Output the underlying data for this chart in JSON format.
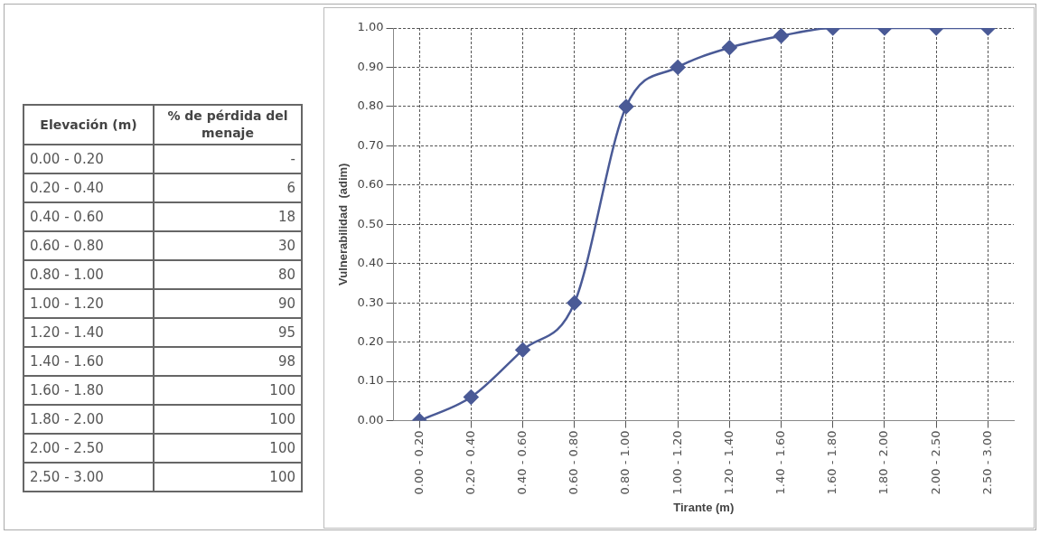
{
  "chart_data": [
    {
      "type": "other",
      "xlabel": "Elevación (m)",
      "ylabel": "% de pérdida del menaje",
      "categories": [
        "0.00  - 0.20",
        "0.20  - 0.40",
        "0.40  - 0.60",
        "0.60  - 0.80",
        "0.80  - 1.00",
        "1.00  - 1.20",
        "1.20  - 1.40",
        "1.40  - 1.60",
        "1.60  - 1.80",
        "1.80  - 2.00",
        "2.00  - 2.50",
        "2.50  - 3.00"
      ],
      "value_labels": [
        "-",
        "6",
        "18",
        "30",
        "80",
        "90",
        "95",
        "98",
        "100",
        "100",
        "100",
        "100"
      ]
    },
    {
      "type": "line",
      "xlabel": "Tirante (m)",
      "ylabel": "Vulnerabilidad  (adim)",
      "categories": [
        "0.00 - 0.20",
        "0.20 - 0.40",
        "0.40 - 0.60",
        "0.60 - 0.80",
        "0.80 - 1.00",
        "1.00 - 1.20",
        "1.20 - 1.40",
        "1.40 - 1.60",
        "1.60 - 1.80",
        "1.80 - 2.00",
        "2.00 - 2.50",
        "2.50 - 3.00"
      ],
      "series": [
        {
          "color": "#4a5a96",
          "values": [
            0.0,
            0.06,
            0.18,
            0.3,
            0.8,
            0.9,
            0.95,
            0.98,
            1.0,
            1.0,
            1.0,
            1.0
          ]
        }
      ],
      "ylim": [
        0,
        1
      ],
      "yticks": [
        {
          "value": 0,
          "label": "0.00"
        },
        {
          "value": 0.1,
          "label": "0.10"
        },
        {
          "value": 0.2,
          "label": "0.20"
        },
        {
          "value": 0.3,
          "label": "0.30"
        },
        {
          "value": 0.4,
          "label": "0.40"
        },
        {
          "value": 0.5,
          "label": "0.50"
        },
        {
          "value": 0.6,
          "label": "0.60"
        },
        {
          "value": 0.7,
          "label": "0.70"
        },
        {
          "value": 0.8,
          "label": "0.80"
        },
        {
          "value": 0.9,
          "label": "0.90"
        },
        {
          "value": 1,
          "label": "1.00"
        }
      ],
      "grid": true,
      "marker": "diamond",
      "legend": false
    }
  ]
}
